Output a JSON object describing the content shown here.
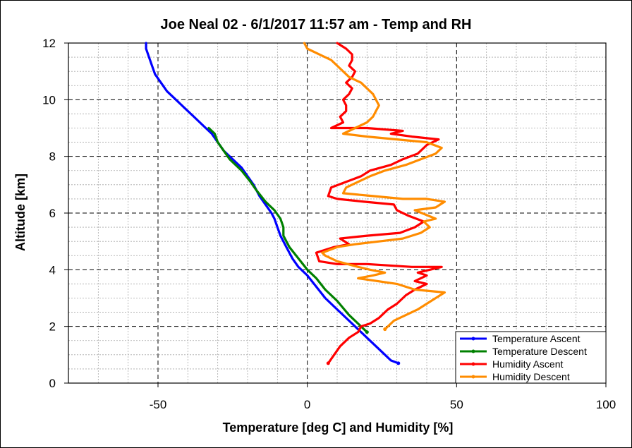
{
  "chart_data": {
    "type": "line",
    "title": "Joe Neal 02 - 6/1/2017 11:57 am - Temp and RH",
    "xlabel": "Temperature [deg C] and Humidity [%]",
    "ylabel": "Altitude [km]",
    "xlim": [
      -80,
      100
    ],
    "ylim": [
      0,
      12
    ],
    "x_ticks": [
      -50,
      0,
      50,
      100
    ],
    "y_ticks": [
      0,
      2,
      4,
      6,
      8,
      10,
      12
    ],
    "grid": true,
    "legend_position": "bottom-right",
    "series": [
      {
        "name": "Temperature Ascent",
        "color": "#0000ff",
        "points": [
          [
            30.5,
            0.7
          ],
          [
            28,
            0.8
          ],
          [
            25,
            1.1
          ],
          [
            21,
            1.5
          ],
          [
            17,
            1.9
          ],
          [
            13,
            2.3
          ],
          [
            9,
            2.7
          ],
          [
            6,
            3.0
          ],
          [
            3,
            3.4
          ],
          [
            0,
            3.8
          ],
          [
            -3,
            4.1
          ],
          [
            -5,
            4.4
          ],
          [
            -7,
            4.8
          ],
          [
            -9,
            5.2
          ],
          [
            -10,
            5.5
          ],
          [
            -11,
            5.8
          ],
          [
            -12,
            6.0
          ],
          [
            -14,
            6.3
          ],
          [
            -16,
            6.6
          ],
          [
            -18,
            7.0
          ],
          [
            -20,
            7.3
          ],
          [
            -22,
            7.6
          ],
          [
            -25,
            7.9
          ],
          [
            -28,
            8.2
          ],
          [
            -30,
            8.5
          ],
          [
            -32,
            8.8
          ],
          [
            -35,
            9.1
          ],
          [
            -38,
            9.4
          ],
          [
            -41,
            9.7
          ],
          [
            -44,
            10.0
          ],
          [
            -47,
            10.3
          ],
          [
            -49,
            10.6
          ],
          [
            -51,
            10.9
          ],
          [
            -52,
            11.2
          ],
          [
            -53,
            11.5
          ],
          [
            -54,
            11.8
          ],
          [
            -54,
            12.0
          ]
        ]
      },
      {
        "name": "Temperature Descent",
        "color": "#008000",
        "points": [
          [
            20,
            1.8
          ],
          [
            17,
            2.1
          ],
          [
            14,
            2.4
          ],
          [
            10,
            2.9
          ],
          [
            6,
            3.3
          ],
          [
            3,
            3.7
          ],
          [
            0,
            4.0
          ],
          [
            -3,
            4.4
          ],
          [
            -6,
            4.8
          ],
          [
            -8,
            5.2
          ],
          [
            -8,
            5.5
          ],
          [
            -9,
            5.8
          ],
          [
            -11,
            6.1
          ],
          [
            -14,
            6.4
          ],
          [
            -17,
            6.8
          ],
          [
            -19,
            7.1
          ],
          [
            -22,
            7.5
          ],
          [
            -26,
            7.9
          ],
          [
            -28,
            8.2
          ],
          [
            -30,
            8.5
          ],
          [
            -31,
            8.8
          ],
          [
            -33,
            9.0
          ]
        ]
      },
      {
        "name": "Humidity Ascent",
        "color": "#ff0000",
        "points": [
          [
            7,
            0.7
          ],
          [
            9,
            1.0
          ],
          [
            11,
            1.3
          ],
          [
            14,
            1.6
          ],
          [
            17,
            1.8
          ],
          [
            18,
            2.0
          ],
          [
            21,
            2.1
          ],
          [
            24,
            2.3
          ],
          [
            27,
            2.6
          ],
          [
            30,
            2.8
          ],
          [
            33,
            3.1
          ],
          [
            36,
            3.3
          ],
          [
            40,
            3.5
          ],
          [
            36,
            3.6
          ],
          [
            40,
            3.8
          ],
          [
            37,
            3.9
          ],
          [
            45,
            4.1
          ],
          [
            35,
            4.1
          ],
          [
            20,
            4.2
          ],
          [
            10,
            4.2
          ],
          [
            4,
            4.3
          ],
          [
            3,
            4.6
          ],
          [
            9,
            4.8
          ],
          [
            14,
            4.9
          ],
          [
            11,
            5.1
          ],
          [
            20,
            5.2
          ],
          [
            31,
            5.3
          ],
          [
            36,
            5.5
          ],
          [
            39,
            5.7
          ],
          [
            34,
            5.9
          ],
          [
            32,
            6.0
          ],
          [
            30,
            6.1
          ],
          [
            29,
            6.3
          ],
          [
            19,
            6.4
          ],
          [
            10,
            6.5
          ],
          [
            7,
            6.6
          ],
          [
            8,
            6.9
          ],
          [
            13,
            7.1
          ],
          [
            18,
            7.3
          ],
          [
            21,
            7.5
          ],
          [
            28,
            7.7
          ],
          [
            32,
            7.9
          ],
          [
            37,
            8.1
          ],
          [
            40,
            8.4
          ],
          [
            44,
            8.6
          ],
          [
            35,
            8.7
          ],
          [
            28,
            8.8
          ],
          [
            32,
            8.9
          ],
          [
            20,
            9.0
          ],
          [
            8,
            9.0
          ],
          [
            12,
            9.2
          ],
          [
            11,
            9.4
          ],
          [
            13,
            9.6
          ],
          [
            13,
            9.8
          ],
          [
            12,
            10.0
          ],
          [
            14,
            10.2
          ],
          [
            15,
            10.4
          ],
          [
            13,
            10.6
          ],
          [
            15,
            10.8
          ],
          [
            16,
            11.0
          ],
          [
            14,
            11.2
          ],
          [
            15,
            11.4
          ],
          [
            15,
            11.6
          ],
          [
            13,
            11.8
          ],
          [
            10,
            12.0
          ]
        ]
      },
      {
        "name": "Humidity Descent",
        "color": "#ff8c00",
        "points": [
          [
            26,
            1.9
          ],
          [
            29,
            2.2
          ],
          [
            33,
            2.4
          ],
          [
            37,
            2.6
          ],
          [
            40,
            2.8
          ],
          [
            43,
            3.0
          ],
          [
            46,
            3.2
          ],
          [
            36,
            3.3
          ],
          [
            30,
            3.5
          ],
          [
            17,
            3.7
          ],
          [
            22,
            3.8
          ],
          [
            26,
            3.9
          ],
          [
            21,
            4.0
          ],
          [
            17,
            4.1
          ],
          [
            10,
            4.3
          ],
          [
            6,
            4.5
          ],
          [
            5,
            4.6
          ],
          [
            10,
            4.8
          ],
          [
            16,
            4.9
          ],
          [
            24,
            5.0
          ],
          [
            32,
            5.1
          ],
          [
            38,
            5.3
          ],
          [
            41,
            5.5
          ],
          [
            39,
            5.7
          ],
          [
            43,
            5.8
          ],
          [
            36,
            6.1
          ],
          [
            43,
            6.2
          ],
          [
            46,
            6.4
          ],
          [
            40,
            6.5
          ],
          [
            32,
            6.5
          ],
          [
            22,
            6.6
          ],
          [
            12,
            6.7
          ],
          [
            13,
            6.9
          ],
          [
            17,
            7.1
          ],
          [
            21,
            7.3
          ],
          [
            26,
            7.5
          ],
          [
            33,
            7.7
          ],
          [
            38,
            7.9
          ],
          [
            43,
            8.1
          ],
          [
            45,
            8.3
          ],
          [
            40,
            8.5
          ],
          [
            30,
            8.6
          ],
          [
            20,
            8.7
          ],
          [
            12,
            8.8
          ],
          [
            16,
            9.0
          ],
          [
            20,
            9.2
          ],
          [
            22,
            9.4
          ],
          [
            23,
            9.6
          ],
          [
            24,
            9.8
          ],
          [
            23,
            10.0
          ],
          [
            22,
            10.2
          ],
          [
            20,
            10.4
          ],
          [
            18,
            10.6
          ],
          [
            14,
            10.8
          ],
          [
            12,
            11.0
          ],
          [
            10,
            11.2
          ],
          [
            8,
            11.4
          ],
          [
            4,
            11.6
          ],
          [
            0,
            11.8
          ],
          [
            -1,
            12.0
          ]
        ]
      }
    ]
  }
}
